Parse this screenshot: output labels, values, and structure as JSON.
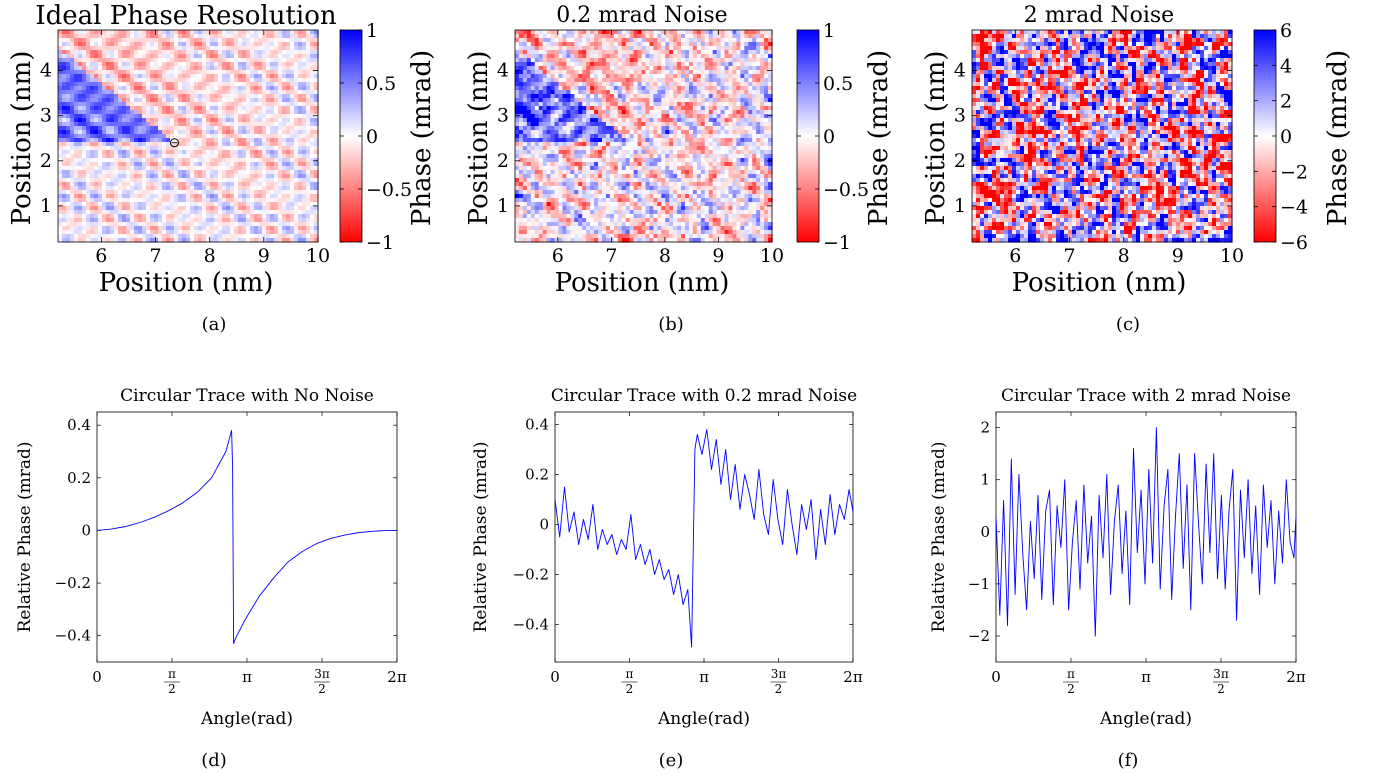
{
  "colors": {
    "negative": "#ff0000",
    "neutral": "#ffffff",
    "positive": "#0000ff",
    "trace": "#0000ff"
  },
  "chart_data": [
    {
      "type": "heatmap",
      "caption": "(a)",
      "title": "Ideal Phase Resolution",
      "xlabel": "Position (nm)",
      "ylabel": "Position (nm)",
      "xlim": [
        5.2,
        10
      ],
      "ylim": [
        0.2,
        4.9
      ],
      "xticks": [
        "6",
        "7",
        "8",
        "9",
        "10"
      ],
      "yticks": [
        "1",
        "2",
        "3",
        "4"
      ],
      "colorbar": {
        "label": "Phase (mrad)",
        "range": [
          -1,
          1
        ],
        "ticks": [
          "1",
          "0.5",
          "0",
          "−0.5",
          "−1"
        ],
        "colormap": "red-white-blue"
      },
      "pattern": "periodic lattice with positive-phase triangular region at upper left",
      "marker": {
        "x": 7.35,
        "y": 2.4,
        "label": "circle"
      }
    },
    {
      "type": "heatmap",
      "caption": "(b)",
      "title": "0.2 mrad Noise",
      "xlabel": "Position (nm)",
      "ylabel": "Position (nm)",
      "xlim": [
        5.2,
        10
      ],
      "ylim": [
        0.2,
        4.9
      ],
      "xticks": [
        "6",
        "7",
        "8",
        "9",
        "10"
      ],
      "yticks": [
        "1",
        "2",
        "3",
        "4"
      ],
      "colorbar": {
        "label": "Phase (mrad)",
        "range": [
          -1,
          1
        ],
        "ticks": [
          "1",
          "0.5",
          "0",
          "−0.5",
          "−1"
        ],
        "colormap": "red-white-blue"
      },
      "pattern": "periodic lattice with moderate noise"
    },
    {
      "type": "heatmap",
      "caption": "(c)",
      "title": "2 mrad Noise",
      "xlabel": "Position (nm)",
      "ylabel": "Position (nm)",
      "xlim": [
        5.2,
        10
      ],
      "ylim": [
        0.2,
        4.9
      ],
      "xticks": [
        "6",
        "7",
        "8",
        "9",
        "10"
      ],
      "yticks": [
        "1",
        "2",
        "3",
        "4"
      ],
      "colorbar": {
        "label": "Phase (mrad)",
        "range": [
          -6,
          6
        ],
        "ticks": [
          "6",
          "4",
          "2",
          "0",
          "−2",
          "−4",
          "−6"
        ],
        "colormap": "red-white-blue"
      },
      "pattern": "noise-dominated random speckle"
    },
    {
      "type": "line",
      "caption": "(d)",
      "title": "Circular Trace with No Noise",
      "xlabel": "Angle(rad)",
      "ylabel": "Relative Phase (mrad)",
      "xlim": [
        0,
        6.2832
      ],
      "ylim": [
        -0.5,
        0.45
      ],
      "xticks": [
        {
          "value": 0,
          "label": "0"
        },
        {
          "value": 1.5708,
          "num": "π",
          "den": "2"
        },
        {
          "value": 3.1416,
          "label": "π"
        },
        {
          "value": 4.7124,
          "num": "3π",
          "den": "2"
        },
        {
          "value": 6.2832,
          "label": "2π"
        }
      ],
      "yticks": [
        {
          "value": 0.4,
          "label": "0.4"
        },
        {
          "value": 0.2,
          "label": "0.2"
        },
        {
          "value": 0,
          "label": "0"
        },
        {
          "value": -0.2,
          "label": "−0.2"
        },
        {
          "value": -0.4,
          "label": "−0.4"
        }
      ],
      "series": [
        {
          "values_x": [
            0,
            0.3,
            0.6,
            0.9,
            1.2,
            1.5,
            1.8,
            2.1,
            2.4,
            2.7,
            2.82,
            2.84,
            2.86,
            2.9,
            3.1,
            3.4,
            3.7,
            4.0,
            4.3,
            4.6,
            4.9,
            5.2,
            5.5,
            5.8,
            6.1,
            6.2832
          ],
          "values_y": [
            0,
            0.005,
            0.015,
            0.03,
            0.05,
            0.075,
            0.105,
            0.145,
            0.2,
            0.3,
            0.38,
            0.24,
            -0.43,
            -0.41,
            -0.34,
            -0.25,
            -0.18,
            -0.12,
            -0.08,
            -0.05,
            -0.03,
            -0.017,
            -0.008,
            -0.003,
            0,
            0
          ]
        }
      ]
    },
    {
      "type": "line",
      "caption": "(e)",
      "title": "Circular Trace with 0.2 mrad Noise",
      "xlabel": "Angle(rad)",
      "ylabel": "Relative Phase (mrad)",
      "xlim": [
        0,
        6.2832
      ],
      "ylim": [
        -0.55,
        0.45
      ],
      "xticks": [
        {
          "value": 0,
          "label": "0"
        },
        {
          "value": 1.5708,
          "num": "π",
          "den": "2"
        },
        {
          "value": 3.1416,
          "label": "π"
        },
        {
          "value": 4.7124,
          "num": "3π",
          "den": "2"
        },
        {
          "value": 6.2832,
          "label": "2π"
        }
      ],
      "yticks": [
        {
          "value": 0.4,
          "label": "0.4"
        },
        {
          "value": 0.2,
          "label": "0.2"
        },
        {
          "value": 0,
          "label": "0"
        },
        {
          "value": -0.2,
          "label": "−0.2"
        },
        {
          "value": -0.4,
          "label": "−0.4"
        }
      ],
      "series": [
        {
          "values_x": [
            0,
            0.1,
            0.2,
            0.3,
            0.4,
            0.5,
            0.6,
            0.7,
            0.8,
            0.9,
            1.0,
            1.1,
            1.2,
            1.3,
            1.4,
            1.5,
            1.6,
            1.7,
            1.8,
            1.9,
            2.0,
            2.1,
            2.2,
            2.3,
            2.4,
            2.5,
            2.6,
            2.7,
            2.8,
            2.88,
            2.95,
            3.0,
            3.1,
            3.2,
            3.3,
            3.4,
            3.5,
            3.6,
            3.7,
            3.8,
            3.9,
            4.0,
            4.1,
            4.2,
            4.3,
            4.4,
            4.5,
            4.6,
            4.7,
            4.8,
            4.9,
            5.0,
            5.1,
            5.2,
            5.3,
            5.4,
            5.5,
            5.6,
            5.7,
            5.8,
            5.9,
            6.0,
            6.1,
            6.2,
            6.2832
          ],
          "values_y": [
            0.1,
            -0.05,
            0.15,
            -0.03,
            0.05,
            -0.08,
            0.02,
            -0.06,
            0.08,
            -0.1,
            -0.02,
            -0.08,
            -0.04,
            -0.12,
            -0.06,
            -0.1,
            0.04,
            -0.14,
            -0.08,
            -0.16,
            -0.1,
            -0.2,
            -0.14,
            -0.22,
            -0.18,
            -0.28,
            -0.2,
            -0.32,
            -0.26,
            -0.49,
            0.3,
            0.36,
            0.28,
            0.38,
            0.22,
            0.34,
            0.16,
            0.3,
            0.1,
            0.24,
            0.06,
            0.2,
            0.12,
            0.02,
            0.22,
            0.04,
            -0.04,
            0.18,
            0.02,
            -0.08,
            0.14,
            0.0,
            -0.12,
            0.08,
            -0.02,
            0.1,
            -0.14,
            0.06,
            -0.08,
            0.12,
            -0.04,
            0.08,
            0.02,
            0.14,
            0.05
          ]
        }
      ]
    },
    {
      "type": "line",
      "caption": "(f)",
      "title": "Circular Trace with 2 mrad Noise",
      "xlabel": "Angle(rad)",
      "ylabel": "Relative Phase (mrad)",
      "xlim": [
        0,
        6.2832
      ],
      "ylim": [
        -2.5,
        2.3
      ],
      "xticks": [
        {
          "value": 0,
          "label": "0"
        },
        {
          "value": 1.5708,
          "num": "π",
          "den": "2"
        },
        {
          "value": 3.1416,
          "label": "π"
        },
        {
          "value": 4.7124,
          "num": "3π",
          "den": "2"
        },
        {
          "value": 6.2832,
          "label": "2π"
        }
      ],
      "yticks": [
        {
          "value": 2,
          "label": "2"
        },
        {
          "value": 1,
          "label": "1"
        },
        {
          "value": 0,
          "label": "0"
        },
        {
          "value": -1,
          "label": "−1"
        },
        {
          "value": -2,
          "label": "−2"
        }
      ],
      "series": [
        {
          "values_x": [
            0,
            0.08,
            0.16,
            0.24,
            0.32,
            0.4,
            0.48,
            0.56,
            0.64,
            0.72,
            0.8,
            0.88,
            0.96,
            1.04,
            1.12,
            1.2,
            1.28,
            1.36,
            1.44,
            1.52,
            1.6,
            1.68,
            1.76,
            1.84,
            1.92,
            2.0,
            2.08,
            2.16,
            2.24,
            2.32,
            2.4,
            2.48,
            2.56,
            2.64,
            2.72,
            2.8,
            2.88,
            2.96,
            3.04,
            3.12,
            3.2,
            3.28,
            3.36,
            3.44,
            3.52,
            3.6,
            3.68,
            3.76,
            3.84,
            3.92,
            4.0,
            4.08,
            4.16,
            4.24,
            4.32,
            4.4,
            4.48,
            4.56,
            4.64,
            4.72,
            4.8,
            4.88,
            4.96,
            5.04,
            5.12,
            5.2,
            5.28,
            5.36,
            5.44,
            5.52,
            5.6,
            5.68,
            5.76,
            5.84,
            5.92,
            6.0,
            6.08,
            6.16,
            6.24,
            6.2832
          ],
          "values_y": [
            0.3,
            -1.6,
            0.6,
            -1.8,
            1.4,
            -1.2,
            1.1,
            -0.4,
            -1.5,
            0.2,
            -0.9,
            0.7,
            -1.3,
            0.4,
            0.8,
            -1.4,
            0.5,
            -0.3,
            1.0,
            -1.5,
            -0.2,
            0.6,
            -1.1,
            0.9,
            -0.6,
            0.3,
            -2.0,
            0.7,
            -0.5,
            1.1,
            -1.2,
            0.2,
            0.9,
            -0.8,
            0.4,
            -1.4,
            1.6,
            -0.4,
            0.8,
            -1.0,
            1.2,
            -0.6,
            2.0,
            -1.1,
            0.5,
            1.2,
            -1.3,
            0.3,
            1.5,
            -0.7,
            0.9,
            -1.5,
            1.5,
            0.2,
            -1.0,
            1.3,
            -0.4,
            1.5,
            -0.9,
            0.7,
            -1.1,
            0.4,
            1.2,
            -1.7,
            0.8,
            -0.5,
            1.0,
            -0.8,
            0.5,
            -1.2,
            0.9,
            -0.3,
            0.6,
            -1.0,
            0.4,
            -0.6,
            1.0,
            -0.2,
            -0.5,
            0.3
          ]
        }
      ]
    }
  ]
}
